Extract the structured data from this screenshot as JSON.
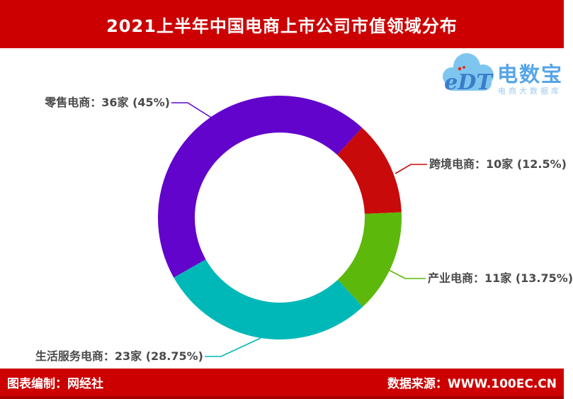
{
  "header": {
    "title": "2021上半年中国电商上市公司市值领域分布"
  },
  "logo": {
    "cloud_text": "eDT",
    "brand": "电数宝",
    "subtitle": "电商大数据库"
  },
  "footer": {
    "left": "图表编制：网经社",
    "right": "数据来源：WWW.100EC.CN"
  },
  "colors": {
    "banner_red": "#CC0000",
    "label_text": "#4A4A4A"
  },
  "chart_data": {
    "type": "pie",
    "title": "2021上半年中国电商上市公司市值领域分布",
    "donut": true,
    "inner_radius_ratio": 0.7,
    "start_angle_deg_clockwise_from_top": 240.5,
    "legend_position": "callout-labels",
    "series": [
      {
        "name": "零售电商",
        "count": 36,
        "percent": 45,
        "color": "#6204CB",
        "label": "零售电商：36家 (45%)"
      },
      {
        "name": "跨境电商",
        "count": 10,
        "percent": 12.5,
        "color": "#C80A0A",
        "label": "跨境电商：10家 (12.5%)"
      },
      {
        "name": "产业电商",
        "count": 11,
        "percent": 13.75,
        "color": "#5CB80A",
        "label": "产业电商：11家 (13.75%)"
      },
      {
        "name": "生活服务电商",
        "count": 23,
        "percent": 28.75,
        "color": "#00B8B8",
        "label": "生活服务电商：23家 (28.75%)"
      }
    ]
  }
}
